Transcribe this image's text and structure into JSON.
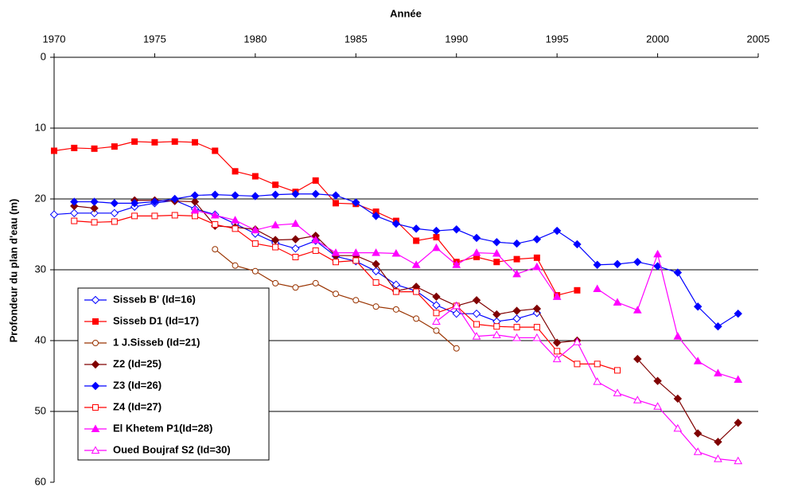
{
  "chart_data": {
    "type": "line",
    "x_label": "Année",
    "y_label": "Profondeur du plan d'eau (m)",
    "x": [
      1970,
      1971,
      1972,
      1973,
      1974,
      1975,
      1976,
      1977,
      1978,
      1979,
      1980,
      1981,
      1982,
      1983,
      1984,
      1985,
      1986,
      1987,
      1988,
      1989,
      1990,
      1991,
      1992,
      1993,
      1994,
      1995,
      1996,
      1997,
      1998,
      1999,
      2000,
      2001,
      2002,
      2003,
      2004
    ],
    "xlim": [
      1970,
      2005
    ],
    "xticks": [
      1970,
      1975,
      1980,
      1985,
      1990,
      1995,
      2000,
      2005
    ],
    "ylim": [
      0,
      60
    ],
    "yticks": [
      0,
      10,
      20,
      30,
      40,
      50,
      60
    ],
    "y_inverted": true,
    "x_axis_position": "top",
    "grid": true,
    "legend": "lower left",
    "series": [
      {
        "name": "Sisseb B' (Id=16)",
        "color": "#0000ff",
        "marker": "diamond",
        "filled": false,
        "values": [
          22.2,
          22.0,
          22.0,
          22.0,
          21.1,
          20.6,
          20.2,
          21.4,
          22.2,
          23.5,
          24.9,
          26.2,
          27.0,
          25.9,
          28.1,
          28.8,
          30.2,
          32.1,
          33.0,
          35.0,
          36.2,
          36.2,
          37.3,
          36.9,
          36.1,
          null,
          null,
          null,
          null,
          null,
          null,
          null,
          null,
          null,
          null
        ]
      },
      {
        "name": "Sisseb D1 (Id=17)",
        "color": "#ff0000",
        "marker": "square",
        "filled": true,
        "values": [
          13.2,
          12.8,
          12.9,
          12.6,
          11.9,
          12.0,
          11.9,
          12.0,
          13.2,
          16.1,
          16.8,
          18.0,
          19.0,
          17.4,
          20.6,
          20.7,
          21.8,
          23.1,
          25.9,
          25.4,
          28.9,
          28.2,
          28.9,
          28.5,
          28.3,
          33.6,
          32.9,
          null,
          null,
          null,
          null,
          null,
          null,
          null,
          null
        ]
      },
      {
        "name": " 1 J.Sisseb (Id=21)",
        "color": "#993300",
        "marker": "circle",
        "filled": false,
        "values": [
          null,
          null,
          null,
          null,
          null,
          null,
          null,
          null,
          27.1,
          29.4,
          30.2,
          31.9,
          32.5,
          31.9,
          33.4,
          34.3,
          35.2,
          35.6,
          36.9,
          38.6,
          41.1,
          null,
          null,
          null,
          null,
          null,
          null,
          null,
          null,
          null,
          null,
          null,
          null,
          null,
          null
        ]
      },
      {
        "name": "Z2 (Id=25)",
        "color": "#800000",
        "marker": "diamond",
        "filled": true,
        "values": [
          null,
          21.0,
          21.3,
          null,
          20.2,
          20.2,
          20.3,
          20.4,
          23.8,
          24.0,
          24.3,
          25.8,
          25.7,
          25.2,
          28.0,
          28.0,
          29.2,
          33.0,
          32.4,
          33.8,
          35.1,
          34.3,
          36.3,
          35.8,
          35.5,
          40.3,
          40.0,
          null,
          null,
          42.6,
          45.7,
          48.2,
          53.1,
          54.3,
          51.6
        ]
      },
      {
        "name": "Z3 (Id=26)",
        "color": "#0000ff",
        "marker": "diamond",
        "filled": true,
        "values": [
          null,
          20.4,
          20.4,
          20.6,
          20.6,
          20.4,
          20.0,
          19.5,
          19.4,
          19.5,
          19.6,
          19.4,
          19.3,
          19.3,
          19.5,
          20.5,
          22.4,
          23.5,
          24.2,
          24.5,
          24.3,
          25.5,
          26.1,
          26.3,
          25.7,
          24.5,
          26.4,
          29.3,
          29.2,
          28.9,
          29.5,
          30.4,
          35.2,
          38.0,
          36.2
        ]
      },
      {
        "name": "Z4 (Id=27)",
        "color": "#ff0000",
        "marker": "square",
        "filled": false,
        "values": [
          null,
          23.1,
          23.3,
          23.2,
          22.4,
          22.4,
          22.3,
          22.4,
          23.6,
          24.2,
          26.3,
          26.8,
          28.2,
          27.3,
          28.9,
          28.7,
          31.8,
          33.1,
          33.1,
          36.1,
          35.1,
          37.7,
          38.0,
          38.1,
          38.1,
          41.5,
          43.3,
          43.3,
          44.2,
          null,
          null,
          null,
          null,
          null,
          null
        ]
      },
      {
        "name": "El Khetem P1(Id=28)",
        "color": "#ff00ff",
        "marker": "triangle",
        "filled": true,
        "values": [
          null,
          null,
          null,
          null,
          null,
          null,
          null,
          21.6,
          22.3,
          23.0,
          24.4,
          23.7,
          23.5,
          25.8,
          27.6,
          27.6,
          27.6,
          27.7,
          29.3,
          26.9,
          29.3,
          27.6,
          27.7,
          30.6,
          29.6,
          33.8,
          null,
          32.7,
          34.6,
          35.7,
          27.8,
          39.4,
          42.9,
          44.6,
          45.5
        ]
      },
      {
        "name": "Oued Boujraf S2 (Id=30)",
        "color": "#ff00ff",
        "marker": "triangle",
        "filled": false,
        "values": [
          null,
          null,
          null,
          null,
          null,
          null,
          null,
          null,
          null,
          null,
          null,
          null,
          null,
          null,
          null,
          null,
          null,
          null,
          null,
          37.3,
          35.1,
          39.4,
          39.2,
          39.6,
          39.6,
          42.6,
          40.2,
          45.8,
          47.4,
          48.4,
          49.3,
          52.4,
          55.7,
          56.7,
          57.0
        ]
      }
    ]
  }
}
